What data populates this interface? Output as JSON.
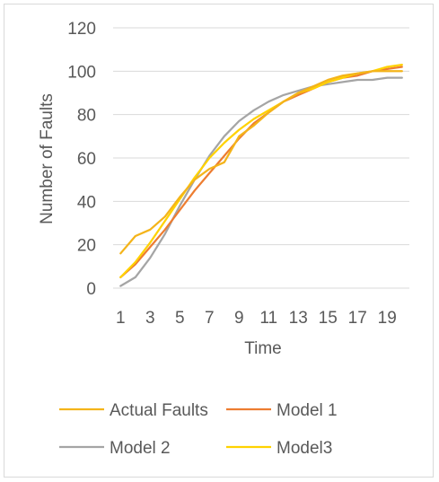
{
  "chart_data": {
    "type": "line",
    "title": "",
    "xlabel": "Time",
    "ylabel": "Number of Faults",
    "x": [
      1,
      2,
      3,
      4,
      5,
      6,
      7,
      8,
      9,
      10,
      11,
      12,
      13,
      14,
      15,
      16,
      17,
      18,
      19,
      20
    ],
    "x_tick_labels": [
      "1",
      "3",
      "5",
      "7",
      "9",
      "11",
      "13",
      "15",
      "17",
      "19"
    ],
    "y_ticks": [
      0,
      20,
      40,
      60,
      80,
      100,
      120
    ],
    "ylim": [
      0,
      120
    ],
    "grid": "horizontal",
    "legend_position": "bottom",
    "series": [
      {
        "name": "Actual Faults",
        "color": "#F4B41A",
        "values": [
          16,
          24,
          27,
          33,
          42,
          50,
          55,
          58,
          70,
          75,
          81,
          86,
          90,
          93,
          96,
          98,
          99,
          100,
          100,
          100
        ]
      },
      {
        "name": "Model 1",
        "color": "#ED7D31",
        "values": [
          5,
          11,
          19,
          27,
          36,
          45,
          53,
          61,
          69,
          76,
          81,
          86,
          89,
          92,
          95,
          97,
          98,
          100,
          101,
          102
        ]
      },
      {
        "name": "Model 2",
        "color": "#A5A5A5",
        "values": [
          1,
          5,
          14,
          25,
          38,
          50,
          61,
          70,
          77,
          82,
          86,
          89,
          91,
          93,
          94,
          95,
          96,
          96,
          97,
          97
        ]
      },
      {
        "name": "Model3",
        "color": "#FFD200",
        "values": [
          5,
          12,
          21,
          31,
          41,
          51,
          60,
          67,
          73,
          78,
          82,
          86,
          90,
          92,
          95,
          97,
          99,
          100,
          102,
          103
        ]
      }
    ]
  }
}
